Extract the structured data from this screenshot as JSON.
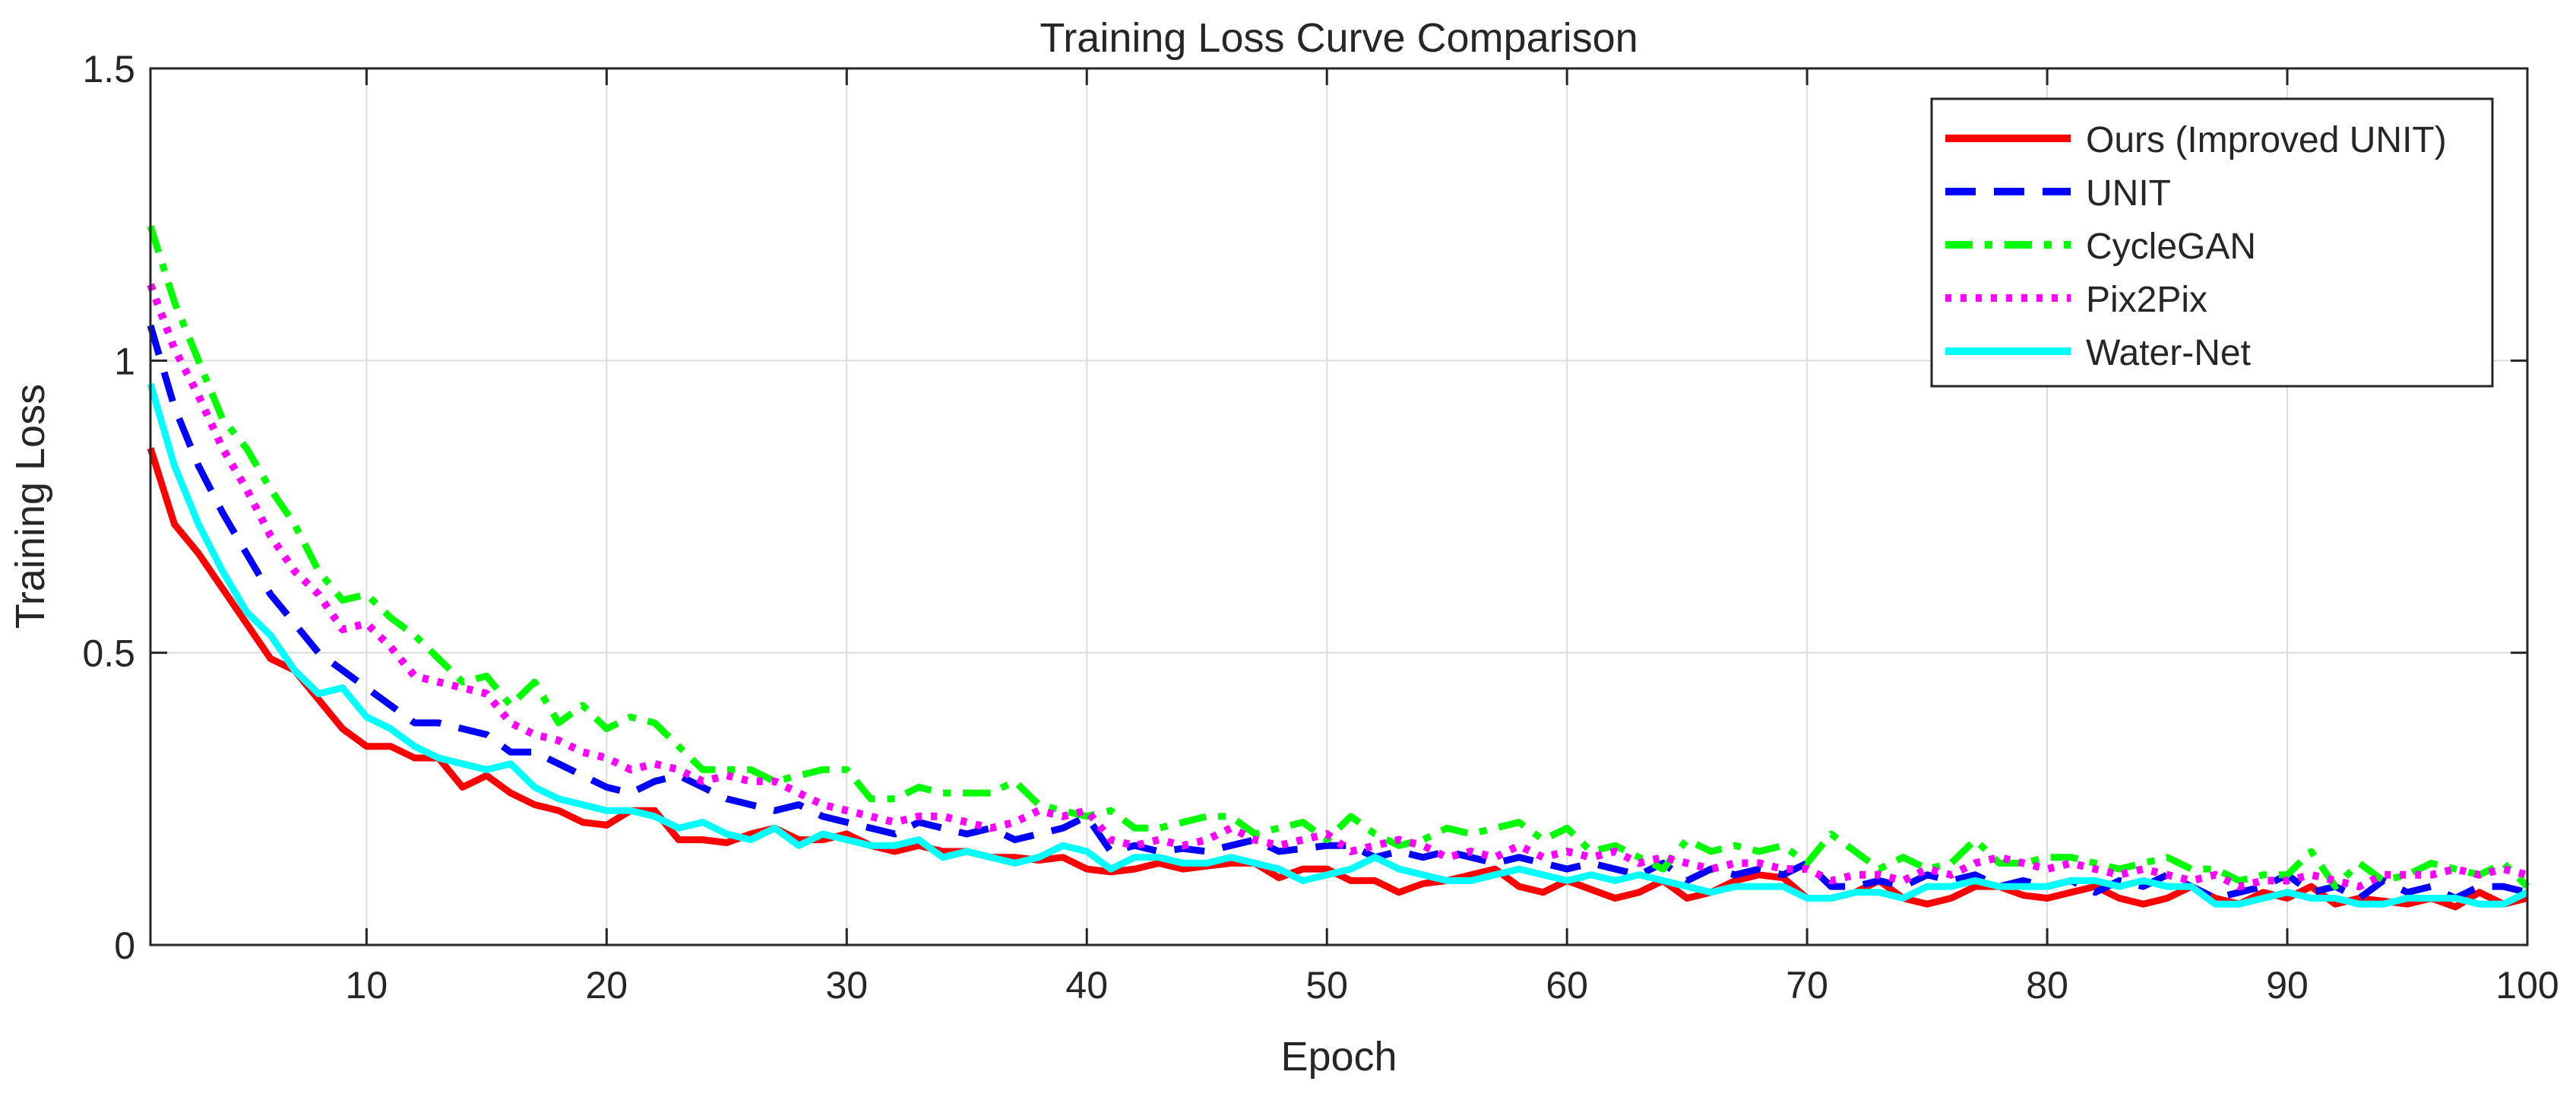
{
  "chart_data": {
    "type": "line",
    "title": "Training Loss Curve Comparison",
    "xlabel": "Epoch",
    "ylabel": "Training Loss",
    "xlim": [
      1,
      100
    ],
    "ylim": [
      0,
      1.5
    ],
    "xticks": [
      10,
      20,
      30,
      40,
      50,
      60,
      70,
      80,
      90,
      100
    ],
    "yticks": [
      0,
      0.5,
      1,
      1.5
    ],
    "ytick_labels": [
      "0",
      "0.5",
      "1",
      "1.5"
    ],
    "grid": true,
    "legend_position": "top-right",
    "x": [
      1,
      2,
      3,
      4,
      5,
      6,
      7,
      8,
      9,
      10,
      11,
      12,
      13,
      14,
      15,
      16,
      17,
      18,
      19,
      20,
      21,
      22,
      23,
      24,
      25,
      26,
      27,
      28,
      29,
      30,
      31,
      32,
      33,
      34,
      35,
      36,
      37,
      38,
      39,
      40,
      41,
      42,
      43,
      44,
      45,
      46,
      47,
      48,
      49,
      50,
      51,
      52,
      53,
      54,
      55,
      56,
      57,
      58,
      59,
      60,
      61,
      62,
      63,
      64,
      65,
      66,
      67,
      68,
      69,
      70,
      71,
      72,
      73,
      74,
      75,
      76,
      77,
      78,
      79,
      80,
      81,
      82,
      83,
      84,
      85,
      86,
      87,
      88,
      89,
      90,
      91,
      92,
      93,
      94,
      95,
      96,
      97,
      98,
      99,
      100
    ],
    "series": [
      {
        "name": "Ours (Improved UNIT)",
        "color": "#ff0000",
        "style": "solid",
        "values": [
          0.85,
          0.72,
          0.67,
          0.61,
          0.55,
          0.49,
          0.47,
          0.42,
          0.37,
          0.34,
          0.34,
          0.32,
          0.32,
          0.27,
          0.29,
          0.26,
          0.24,
          0.23,
          0.21,
          0.205,
          0.23,
          0.23,
          0.18,
          0.18,
          0.175,
          0.19,
          0.2,
          0.18,
          0.18,
          0.19,
          0.17,
          0.16,
          0.17,
          0.16,
          0.16,
          0.15,
          0.15,
          0.145,
          0.15,
          0.13,
          0.125,
          0.13,
          0.14,
          0.13,
          0.135,
          0.14,
          0.14,
          0.115,
          0.13,
          0.13,
          0.11,
          0.11,
          0.09,
          0.105,
          0.11,
          0.12,
          0.13,
          0.1,
          0.09,
          0.11,
          0.095,
          0.08,
          0.09,
          0.11,
          0.08,
          0.09,
          0.11,
          0.12,
          0.115,
          0.08,
          0.08,
          0.09,
          0.11,
          0.08,
          0.07,
          0.08,
          0.1,
          0.1,
          0.085,
          0.08,
          0.09,
          0.1,
          0.08,
          0.07,
          0.08,
          0.1,
          0.08,
          0.07,
          0.09,
          0.08,
          0.1,
          0.07,
          0.08,
          0.075,
          0.07,
          0.08,
          0.065,
          0.09,
          0.07,
          0.08
        ]
      },
      {
        "name": "UNIT",
        "color": "#0000ff",
        "style": "dashed",
        "values": [
          1.06,
          0.92,
          0.82,
          0.74,
          0.67,
          0.6,
          0.55,
          0.5,
          0.47,
          0.44,
          0.41,
          0.38,
          0.38,
          0.37,
          0.36,
          0.33,
          0.33,
          0.31,
          0.29,
          0.27,
          0.26,
          0.28,
          0.29,
          0.27,
          0.25,
          0.24,
          0.23,
          0.24,
          0.22,
          0.21,
          0.2,
          0.19,
          0.21,
          0.2,
          0.19,
          0.2,
          0.18,
          0.19,
          0.2,
          0.22,
          0.16,
          0.17,
          0.16,
          0.165,
          0.16,
          0.17,
          0.18,
          0.16,
          0.165,
          0.17,
          0.17,
          0.15,
          0.16,
          0.15,
          0.16,
          0.15,
          0.14,
          0.15,
          0.14,
          0.13,
          0.14,
          0.13,
          0.12,
          0.14,
          0.11,
          0.13,
          0.12,
          0.13,
          0.12,
          0.14,
          0.1,
          0.1,
          0.11,
          0.1,
          0.12,
          0.11,
          0.12,
          0.1,
          0.11,
          0.1,
          0.11,
          0.09,
          0.11,
          0.1,
          0.12,
          0.1,
          0.08,
          0.09,
          0.1,
          0.12,
          0.09,
          0.1,
          0.08,
          0.11,
          0.09,
          0.1,
          0.08,
          0.1,
          0.1,
          0.09
        ]
      },
      {
        "name": "CycleGAN",
        "color": "#00ff00",
        "style": "dashdot",
        "values": [
          1.23,
          1.1,
          1.0,
          0.9,
          0.85,
          0.78,
          0.72,
          0.64,
          0.59,
          0.6,
          0.56,
          0.53,
          0.49,
          0.45,
          0.46,
          0.41,
          0.45,
          0.38,
          0.41,
          0.37,
          0.39,
          0.38,
          0.34,
          0.3,
          0.3,
          0.3,
          0.28,
          0.29,
          0.3,
          0.3,
          0.25,
          0.25,
          0.27,
          0.26,
          0.26,
          0.26,
          0.28,
          0.24,
          0.23,
          0.22,
          0.23,
          0.2,
          0.2,
          0.21,
          0.22,
          0.22,
          0.19,
          0.2,
          0.21,
          0.18,
          0.22,
          0.19,
          0.17,
          0.18,
          0.2,
          0.19,
          0.2,
          0.21,
          0.18,
          0.2,
          0.16,
          0.17,
          0.15,
          0.13,
          0.18,
          0.16,
          0.17,
          0.16,
          0.17,
          0.14,
          0.19,
          0.16,
          0.13,
          0.15,
          0.13,
          0.14,
          0.18,
          0.14,
          0.14,
          0.15,
          0.15,
          0.14,
          0.13,
          0.14,
          0.15,
          0.13,
          0.13,
          0.11,
          0.12,
          0.12,
          0.16,
          0.1,
          0.14,
          0.11,
          0.12,
          0.14,
          0.13,
          0.12,
          0.14,
          0.1
        ]
      },
      {
        "name": "Pix2Pix",
        "color": "#ff00ff",
        "style": "dotted",
        "values": [
          1.13,
          1.02,
          0.94,
          0.85,
          0.78,
          0.7,
          0.64,
          0.6,
          0.54,
          0.55,
          0.51,
          0.46,
          0.45,
          0.44,
          0.43,
          0.38,
          0.36,
          0.35,
          0.33,
          0.32,
          0.3,
          0.31,
          0.3,
          0.28,
          0.29,
          0.28,
          0.28,
          0.26,
          0.24,
          0.23,
          0.22,
          0.21,
          0.22,
          0.22,
          0.21,
          0.2,
          0.21,
          0.23,
          0.22,
          0.23,
          0.18,
          0.17,
          0.18,
          0.17,
          0.18,
          0.2,
          0.18,
          0.17,
          0.18,
          0.19,
          0.16,
          0.17,
          0.18,
          0.17,
          0.15,
          0.16,
          0.15,
          0.17,
          0.15,
          0.16,
          0.15,
          0.16,
          0.14,
          0.15,
          0.14,
          0.13,
          0.14,
          0.14,
          0.13,
          0.13,
          0.11,
          0.12,
          0.12,
          0.11,
          0.13,
          0.12,
          0.14,
          0.15,
          0.14,
          0.13,
          0.14,
          0.13,
          0.12,
          0.13,
          0.12,
          0.11,
          0.12,
          0.1,
          0.11,
          0.11,
          0.12,
          0.11,
          0.1,
          0.12,
          0.12,
          0.12,
          0.13,
          0.12,
          0.13,
          0.12
        ]
      },
      {
        "name": "Water-Net",
        "color": "#00ffff",
        "style": "solid",
        "values": [
          0.96,
          0.82,
          0.72,
          0.64,
          0.57,
          0.53,
          0.47,
          0.43,
          0.44,
          0.39,
          0.37,
          0.34,
          0.32,
          0.31,
          0.3,
          0.31,
          0.27,
          0.25,
          0.24,
          0.23,
          0.23,
          0.22,
          0.2,
          0.21,
          0.19,
          0.18,
          0.2,
          0.17,
          0.19,
          0.18,
          0.17,
          0.17,
          0.18,
          0.15,
          0.16,
          0.15,
          0.14,
          0.15,
          0.17,
          0.16,
          0.13,
          0.15,
          0.15,
          0.14,
          0.14,
          0.15,
          0.14,
          0.13,
          0.11,
          0.12,
          0.13,
          0.15,
          0.13,
          0.12,
          0.11,
          0.11,
          0.12,
          0.13,
          0.12,
          0.11,
          0.12,
          0.11,
          0.12,
          0.11,
          0.1,
          0.09,
          0.1,
          0.1,
          0.1,
          0.08,
          0.08,
          0.09,
          0.09,
          0.08,
          0.1,
          0.1,
          0.11,
          0.1,
          0.1,
          0.1,
          0.11,
          0.11,
          0.1,
          0.11,
          0.1,
          0.1,
          0.07,
          0.07,
          0.08,
          0.09,
          0.08,
          0.08,
          0.07,
          0.07,
          0.08,
          0.08,
          0.08,
          0.07,
          0.07,
          0.09
        ]
      }
    ]
  }
}
